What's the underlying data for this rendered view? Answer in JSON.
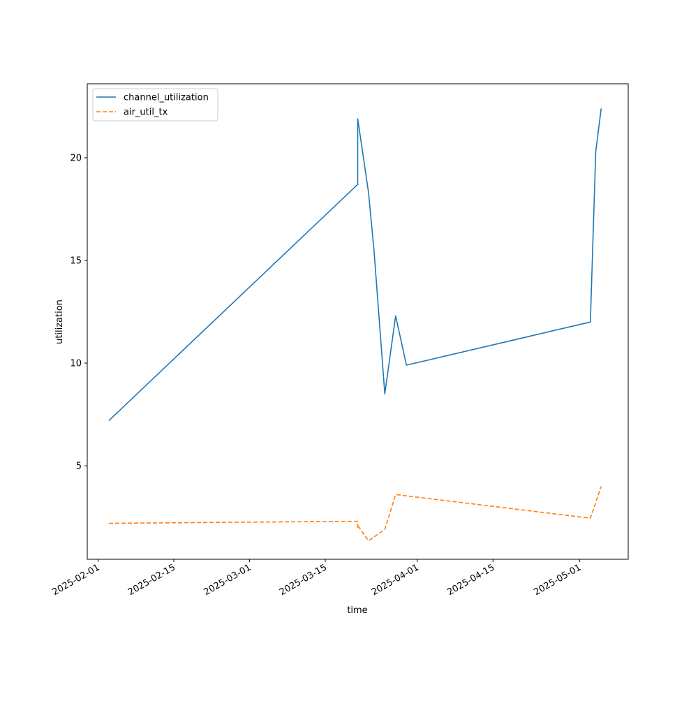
{
  "chart_data": {
    "type": "line",
    "title": "",
    "xlabel": "time",
    "ylabel": "utilization",
    "x_ticks": [
      "2025-02-01",
      "2025-02-15",
      "2025-03-01",
      "2025-03-15",
      "2025-04-01",
      "2025-04-15",
      "2025-05-01"
    ],
    "y_ticks": [
      5,
      10,
      15,
      20
    ],
    "xlim": [
      "2025-01-30",
      "2025-05-10"
    ],
    "ylim": [
      0.45,
      23.6
    ],
    "grid": false,
    "legend_position": "upper left",
    "series": [
      {
        "name": "channel_utilization",
        "color": "#1f77b4",
        "style": "solid",
        "points": [
          [
            "2025-02-03",
            7.2
          ],
          [
            "2025-03-21",
            18.7
          ],
          [
            "2025-03-21",
            19.5
          ],
          [
            "2025-03-21",
            21.9
          ],
          [
            "2025-03-23",
            18.3
          ],
          [
            "2025-03-24",
            15.5
          ],
          [
            "2025-03-26",
            8.5
          ],
          [
            "2025-03-28",
            12.3
          ],
          [
            "2025-03-30",
            9.9
          ],
          [
            "2025-05-03",
            12.0
          ],
          [
            "2025-05-04",
            20.3
          ],
          [
            "2025-05-05",
            22.4
          ]
        ]
      },
      {
        "name": "air_util_tx",
        "color": "#ff7f0e",
        "style": "dashed",
        "points": [
          [
            "2025-02-03",
            2.2
          ],
          [
            "2025-03-21",
            2.3
          ],
          [
            "2025-03-21",
            2.0
          ],
          [
            "2025-03-21",
            2.1
          ],
          [
            "2025-03-23",
            1.35
          ],
          [
            "2025-03-26",
            1.9
          ],
          [
            "2025-03-28",
            3.6
          ],
          [
            "2025-05-03",
            2.45
          ],
          [
            "2025-05-05",
            4.0
          ]
        ]
      }
    ]
  }
}
